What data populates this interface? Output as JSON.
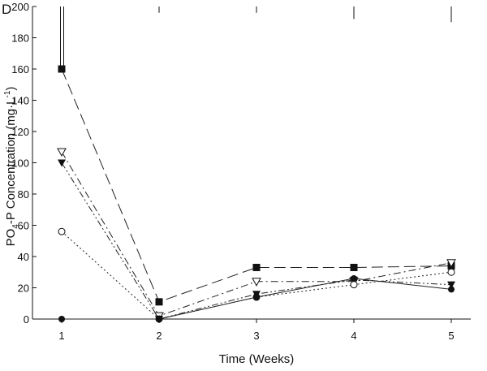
{
  "panel_label": "D",
  "chart_data": {
    "type": "line",
    "title": "",
    "xlabel": "Time (Weeks)",
    "ylabel_main": "PO",
    "ylabel_sub": "4",
    "ylabel_mid": "-P Concentration (mg·L",
    "ylabel_sup": "-1",
    "ylabel_end": ")",
    "x": [
      1,
      2,
      3,
      4,
      5
    ],
    "xlim": [
      1,
      5
    ],
    "ylim": [
      0,
      200
    ],
    "x_ticks": [
      "1",
      "2",
      "3",
      "4",
      "5"
    ],
    "y_ticks": [
      "0",
      "20",
      "40",
      "60",
      "80",
      "100",
      "120",
      "140",
      "160",
      "180",
      "200"
    ],
    "grid": false,
    "series": [
      {
        "name": "filled square",
        "marker": "square-filled",
        "dash": "long-dash",
        "values": [
          160,
          11,
          33,
          33,
          34
        ],
        "error_up": [
          40,
          0,
          0,
          0,
          0
        ]
      },
      {
        "name": "open triangle down",
        "marker": "triangle-down-open",
        "dash": "dash-dot",
        "values": [
          107,
          2,
          24,
          24,
          36
        ],
        "error_up": [
          0,
          0,
          0,
          0,
          0
        ]
      },
      {
        "name": "filled triangle down",
        "marker": "triangle-down-filled",
        "dash": "dash-dot-dot",
        "values": [
          100,
          0,
          16,
          25,
          22
        ],
        "error_up": [
          0,
          0,
          0,
          0,
          0
        ]
      },
      {
        "name": "open circle",
        "marker": "circle-open",
        "dash": "dotted",
        "values": [
          56,
          0,
          14,
          22,
          30
        ],
        "error_up": [
          0,
          0,
          0,
          0,
          0
        ]
      },
      {
        "name": "filled circle",
        "marker": "circle-filled",
        "dash": "solid",
        "values": [
          0,
          0,
          14,
          26,
          19
        ],
        "error_up": [
          0,
          0,
          0,
          0,
          0
        ]
      }
    ],
    "top_whiskers": [
      {
        "x": 2,
        "y_low": 196,
        "y_high": 200
      },
      {
        "x": 3,
        "y_low": 196,
        "y_high": 200
      },
      {
        "x": 4,
        "y_low": 192,
        "y_high": 200
      },
      {
        "x": 5,
        "y_low": 190,
        "y_high": 200
      }
    ]
  }
}
